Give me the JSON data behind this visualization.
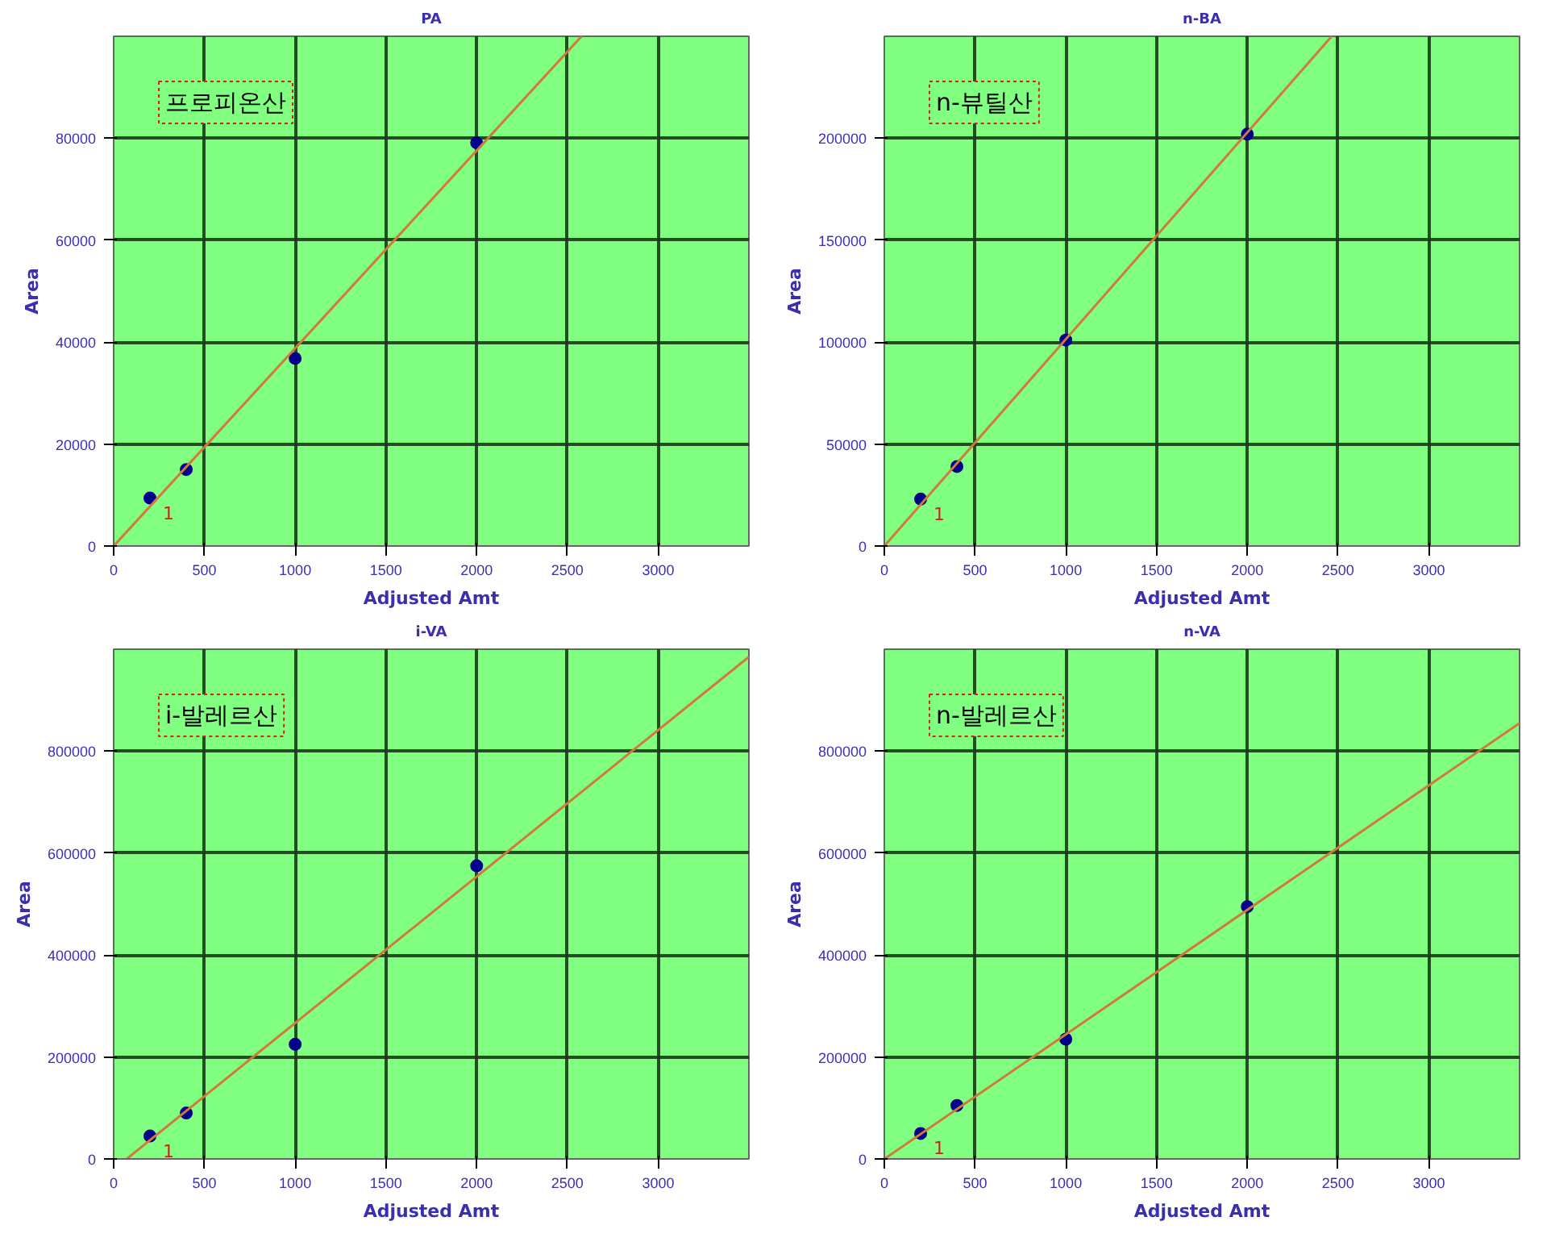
{
  "chart_data": [
    {
      "type": "scatter",
      "title": "PA",
      "xlabel": "Adjusted Amt",
      "ylabel": "Area",
      "xlim": [
        0,
        3500
      ],
      "ylim": [
        0,
        100000
      ],
      "xticks": [
        0,
        500,
        1000,
        1500,
        2000,
        2500,
        3000
      ],
      "yticks": [
        0,
        20000,
        40000,
        60000,
        80000
      ],
      "grid": true,
      "annotations": [
        "프로피온산",
        "1"
      ],
      "series": [
        {
          "color": "#00008b",
          "marker": "circle",
          "x": [
            200,
            400,
            1000,
            2000
          ],
          "values": [
            9400,
            15000,
            36800,
            79100
          ]
        },
        {
          "type": "line",
          "color": "#d2793a",
          "x": [
            0,
            2578
          ],
          "values": [
            0,
            100000
          ]
        }
      ]
    },
    {
      "type": "scatter",
      "title": "n-BA",
      "xlabel": "Adjusted Amt",
      "ylabel": "Area",
      "xlim": [
        0,
        3500
      ],
      "ylim": [
        0,
        250000
      ],
      "xticks": [
        0,
        500,
        1000,
        1500,
        2000,
        2500,
        3000
      ],
      "yticks": [
        0,
        50000,
        100000,
        150000,
        200000
      ],
      "grid": true,
      "annotations": [
        "n-뷰틸산",
        "1"
      ],
      "series": [
        {
          "color": "#00008b",
          "marker": "circle",
          "x": [
            200,
            400,
            1000,
            2000
          ],
          "values": [
            23000,
            39000,
            101000,
            202000
          ]
        },
        {
          "type": "line",
          "color": "#d2793a",
          "x": [
            0,
            2465
          ],
          "values": [
            0,
            250000
          ]
        }
      ]
    },
    {
      "type": "scatter",
      "title": "i-VA",
      "xlabel": "Adjusted Amt",
      "ylabel": "Area",
      "xlim": [
        0,
        3500
      ],
      "ylim": [
        0,
        1000000
      ],
      "xticks": [
        0,
        500,
        1000,
        1500,
        2000,
        2500,
        3000
      ],
      "yticks": [
        0,
        200000,
        400000,
        600000,
        800000
      ],
      "grid": true,
      "annotations": [
        "i-발레르산",
        "1"
      ],
      "series": [
        {
          "color": "#00008b",
          "marker": "circle",
          "x": [
            200,
            400,
            1000,
            2000
          ],
          "values": [
            45000,
            90000,
            225000,
            575000
          ]
        },
        {
          "type": "line",
          "color": "#d2793a",
          "x": [
            72,
            3500
          ],
          "values": [
            0,
            985000
          ]
        }
      ]
    },
    {
      "type": "scatter",
      "title": "n-VA",
      "xlabel": "Adjusted Amt",
      "ylabel": "Area",
      "xlim": [
        0,
        3500
      ],
      "ylim": [
        0,
        1000000
      ],
      "xticks": [
        0,
        500,
        1000,
        1500,
        2000,
        2500,
        3000
      ],
      "yticks": [
        0,
        200000,
        400000,
        600000,
        800000
      ],
      "grid": true,
      "annotations": [
        "n-발레르산",
        "1"
      ],
      "series": [
        {
          "color": "#00008b",
          "marker": "circle",
          "x": [
            200,
            400,
            1000,
            2000
          ],
          "values": [
            50000,
            105000,
            235000,
            495000
          ]
        },
        {
          "type": "line",
          "color": "#d2793a",
          "x": [
            0,
            3500
          ],
          "values": [
            0,
            855000
          ]
        }
      ]
    }
  ]
}
